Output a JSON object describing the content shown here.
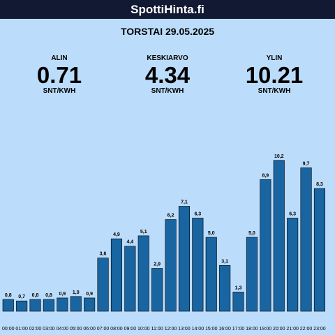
{
  "header": {
    "brand": "SpottiHinta.fi"
  },
  "date_title": "TORSTAI 29.05.2025",
  "stats": {
    "low": {
      "label": "ALIN",
      "value": "0.71",
      "unit": "SNT/KWH"
    },
    "avg": {
      "label": "KESKIARVO",
      "value": "4.34",
      "unit": "SNT/KWH"
    },
    "high": {
      "label": "YLIN",
      "value": "10.21",
      "unit": "SNT/KWH"
    }
  },
  "colors": {
    "background": "#bcdcfb",
    "bar": "#1865a1",
    "topbar": "#121a33"
  },
  "chart_data": {
    "type": "bar",
    "categories": [
      "00:00",
      "01:00",
      "02:00",
      "03:00",
      "04:00",
      "05:00",
      "06:00",
      "07:00",
      "08:00",
      "09:00",
      "10:00",
      "11:00",
      "12:00",
      "13:00",
      "14:00",
      "15:00",
      "16:00",
      "17:00",
      "18:00",
      "19:00",
      "20:00",
      "21:00",
      "22:00",
      "23:00"
    ],
    "values": [
      0.8,
      0.7,
      0.8,
      0.8,
      0.9,
      1.0,
      0.9,
      3.6,
      4.9,
      4.4,
      5.1,
      2.9,
      6.2,
      7.1,
      6.3,
      5.0,
      3.1,
      1.3,
      5.0,
      8.9,
      10.2,
      6.3,
      9.7,
      8.3
    ],
    "value_labels": [
      "0,8",
      "0,7",
      "0,8",
      "0,8",
      "0,9",
      "1,0",
      "0,9",
      "3,6",
      "4,9",
      "4,4",
      "5,1",
      "2,9",
      "6,2",
      "7,1",
      "6,3",
      "5,0",
      "3,1",
      "1,3",
      "5,0",
      "8,9",
      "10,2",
      "6,3",
      "9,7",
      "8,3"
    ],
    "title": "",
    "xlabel": "",
    "ylabel": "",
    "grid": false
  }
}
